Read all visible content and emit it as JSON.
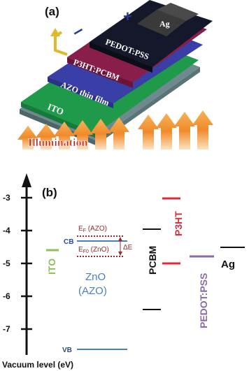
{
  "panel_a": {
    "label": "(a)",
    "layers": [
      "PEDOT:PSS",
      "P3HT:PCBM",
      "AZO thin film",
      "ITO"
    ],
    "electrode": "Ag",
    "minus_sign": "–",
    "plus_sign": "+",
    "illumination": "Illumination",
    "colors": {
      "pedot": "#14182a",
      "p3ht": "#8a1e4a",
      "azo": "#3a3fa8",
      "ito": "#1f9a4a",
      "glass": "#6f8a8e",
      "ag": "#3a3a3a",
      "arrow": "#f39c3a",
      "wire": "#e1b82a",
      "sign": "#2a3a8a",
      "illumination_text": "#b72020"
    }
  },
  "panel_b": {
    "label": "(b)",
    "axis_ticks": [
      "-3",
      "-4",
      "-5",
      "-6",
      "-7"
    ],
    "axis_label": "Vacuum level (eV)",
    "materials": {
      "ito": "ITO",
      "zno": [
        "ZnO",
        "(AZO)"
      ],
      "pcbm": "PCBM",
      "p3ht": "P3HT",
      "pedot": "PEDOT:PSS",
      "ag": "Ag"
    },
    "level_labels": {
      "cb": "CB",
      "vb": "VB",
      "ef_azo": "E",
      "ef_azo_sub": "F",
      "ef_azo_tail": " (AZO)",
      "ef_zno": "E",
      "ef_zno_sub": "F0",
      "ef_zno_tail": " (ZnO)",
      "delta_e": "ΔE"
    },
    "chart_data": {
      "type": "diagram",
      "y_unit": "eV",
      "ylim": [
        -7.8,
        -2.8
      ],
      "levels": [
        {
          "material": "ITO",
          "energy": -4.7
        },
        {
          "material": "ZnO (AZO) CB",
          "energy": -4.4
        },
        {
          "material": "ZnO (AZO) VB",
          "energy": -7.7
        },
        {
          "material": "EF (AZO)",
          "energy": -4.2
        },
        {
          "material": "EF0 (ZnO)",
          "energy": -4.6
        },
        {
          "material": "PCBM LUMO",
          "energy": -4.0
        },
        {
          "material": "PCBM HOMO",
          "energy": -6.4
        },
        {
          "material": "P3HT LUMO",
          "energy": -3.0
        },
        {
          "material": "P3HT HOMO",
          "energy": -5.0
        },
        {
          "material": "PEDOT:PSS",
          "energy": -4.8
        },
        {
          "material": "Ag",
          "energy": -4.6
        }
      ]
    },
    "colors": {
      "ito": "#8fbf5a",
      "zno": "#4a7fc4",
      "fermi": "#9a2a2a",
      "pcbm": "#111111",
      "p3ht": "#e02a3a",
      "pedot": "#8a6aa8",
      "ag": "#111111"
    }
  }
}
